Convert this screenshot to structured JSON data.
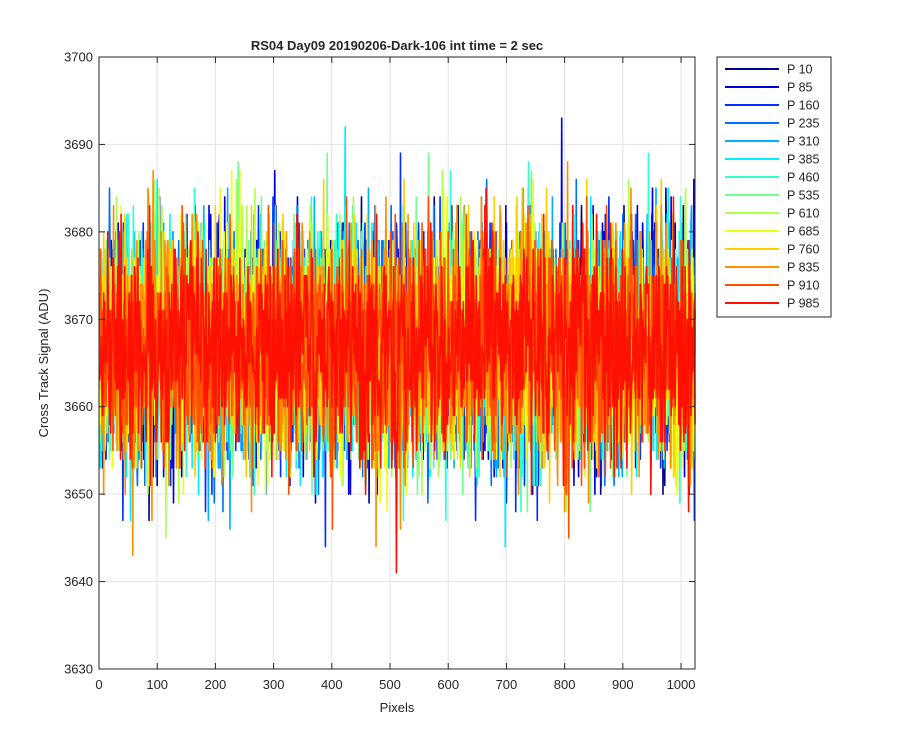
{
  "chart_data": {
    "type": "line",
    "title": "RS04 Day09 20190206-Dark-106 int time = 2 sec",
    "xlabel": "Pixels",
    "ylabel": "Cross Track Signal (ADU)",
    "xlim": [
      0,
      1024
    ],
    "ylim": [
      3630,
      3700
    ],
    "x_ticks": [
      0,
      100,
      200,
      300,
      400,
      500,
      600,
      700,
      800,
      900,
      1000
    ],
    "y_ticks": [
      3630,
      3640,
      3650,
      3660,
      3670,
      3680,
      3690,
      3700
    ],
    "grid": true,
    "legend_position": "outside-top-right",
    "n_points": 1024,
    "series": [
      {
        "name": "P 10",
        "color": "#00008F",
        "mean": 3667,
        "spread": 6.5
      },
      {
        "name": "P 85",
        "color": "#0000DF",
        "mean": 3667,
        "spread": 6.5
      },
      {
        "name": "P 160",
        "color": "#0030FF",
        "mean": 3667,
        "spread": 6.5
      },
      {
        "name": "P 235",
        "color": "#0070FF",
        "mean": 3667,
        "spread": 6.5
      },
      {
        "name": "P 310",
        "color": "#00AFFF",
        "mean": 3667,
        "spread": 6.5
      },
      {
        "name": "P 385",
        "color": "#00EFFF",
        "mean": 3667,
        "spread": 6.5
      },
      {
        "name": "P 460",
        "color": "#30FFCF",
        "mean": 3667,
        "spread": 6.5
      },
      {
        "name": "P 535",
        "color": "#70FF8F",
        "mean": 3667,
        "spread": 6.5
      },
      {
        "name": "P 610",
        "color": "#AFFF50",
        "mean": 3667,
        "spread": 6.5
      },
      {
        "name": "P 685",
        "color": "#EFFF10",
        "mean": 3667,
        "spread": 6.5
      },
      {
        "name": "P 760",
        "color": "#FFCF00",
        "mean": 3667,
        "spread": 6.5
      },
      {
        "name": "P 835",
        "color": "#FF8F00",
        "mean": 3667,
        "spread": 6.5
      },
      {
        "name": "P 910",
        "color": "#FF5000",
        "mean": 3667,
        "spread": 6.5
      },
      {
        "name": "P 985",
        "color": "#FF1000",
        "mean": 3667,
        "spread": 6.5
      }
    ]
  }
}
